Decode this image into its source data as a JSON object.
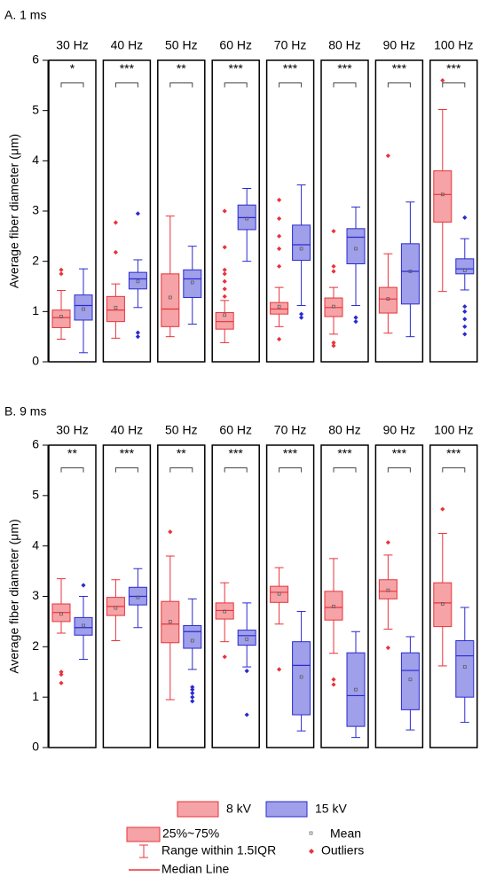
{
  "chart_data": [
    {
      "type": "box",
      "title": "A. 1 ms",
      "ylabel": "Average fiber diameter (μm)",
      "ylim": [
        0,
        6
      ],
      "yticks": [
        0,
        1,
        2,
        3,
        4,
        5,
        6
      ],
      "categories": [
        "30 Hz",
        "40 Hz",
        "50 Hz",
        "60 Hz",
        "70 Hz",
        "80 Hz",
        "90 Hz",
        "100 Hz"
      ],
      "significance": [
        "*",
        "***",
        "**",
        "***",
        "***",
        "***",
        "***",
        "***"
      ],
      "series": [
        {
          "name": "8 kV",
          "color": "#e8333a",
          "stats": [
            {
              "low": 0.45,
              "q1": 0.68,
              "median": 0.88,
              "q3": 1.03,
              "high": 1.42,
              "mean": 0.9,
              "outliers": [
                1.75,
                1.83
              ]
            },
            {
              "low": 0.47,
              "q1": 0.8,
              "median": 1.03,
              "q3": 1.3,
              "high": 1.55,
              "mean": 1.08,
              "outliers": [
                2.18,
                2.77
              ]
            },
            {
              "low": 0.5,
              "q1": 0.7,
              "median": 1.05,
              "q3": 1.75,
              "high": 2.9,
              "mean": 1.28,
              "outliers": []
            },
            {
              "low": 0.38,
              "q1": 0.65,
              "median": 0.8,
              "q3": 0.98,
              "high": 1.22,
              "mean": 0.93,
              "outliers": [
                1.3,
                1.45,
                1.6,
                1.75,
                1.83,
                2.28,
                3.0
              ]
            },
            {
              "low": 0.7,
              "q1": 0.95,
              "median": 1.05,
              "q3": 1.18,
              "high": 1.48,
              "mean": 1.1,
              "outliers": [
                0.45,
                1.9,
                2.25,
                2.5,
                2.85,
                3.22
              ]
            },
            {
              "low": 0.55,
              "q1": 0.9,
              "median": 1.08,
              "q3": 1.27,
              "high": 1.48,
              "mean": 1.1,
              "outliers": [
                0.32,
                0.38,
                1.8,
                1.9,
                2.6
              ]
            },
            {
              "low": 0.57,
              "q1": 0.97,
              "median": 1.25,
              "q3": 1.48,
              "high": 2.15,
              "mean": 1.25,
              "outliers": [
                4.1
              ]
            },
            {
              "low": 1.4,
              "q1": 2.78,
              "median": 3.33,
              "q3": 3.8,
              "high": 5.02,
              "mean": 3.33,
              "outliers": [
                5.6
              ]
            }
          ]
        },
        {
          "name": "15 kV",
          "color": "#2a2ad0",
          "stats": [
            {
              "low": 0.18,
              "q1": 0.83,
              "median": 1.12,
              "q3": 1.33,
              "high": 1.85,
              "mean": 1.05,
              "outliers": []
            },
            {
              "low": 1.08,
              "q1": 1.45,
              "median": 1.65,
              "q3": 1.78,
              "high": 2.03,
              "mean": 1.6,
              "outliers": [
                0.5,
                0.58,
                2.95
              ]
            },
            {
              "low": 0.75,
              "q1": 1.28,
              "median": 1.65,
              "q3": 1.83,
              "high": 2.3,
              "mean": 1.58,
              "outliers": []
            },
            {
              "low": 2.0,
              "q1": 2.63,
              "median": 2.87,
              "q3": 3.12,
              "high": 3.45,
              "mean": 2.85,
              "outliers": []
            },
            {
              "low": 1.12,
              "q1": 2.02,
              "median": 2.33,
              "q3": 2.72,
              "high": 3.52,
              "mean": 2.25,
              "outliers": [
                0.88,
                0.95
              ]
            },
            {
              "low": 1.12,
              "q1": 1.95,
              "median": 2.48,
              "q3": 2.65,
              "high": 3.08,
              "mean": 2.25,
              "outliers": [
                0.8,
                0.88
              ]
            },
            {
              "low": 0.5,
              "q1": 1.15,
              "median": 1.8,
              "q3": 2.35,
              "high": 3.18,
              "mean": 1.8,
              "outliers": []
            },
            {
              "low": 1.43,
              "q1": 1.75,
              "median": 1.85,
              "q3": 2.05,
              "high": 2.45,
              "mean": 1.82,
              "outliers": [
                0.55,
                0.7,
                0.85,
                1.0,
                1.1,
                2.87
              ]
            }
          ]
        }
      ]
    },
    {
      "type": "box",
      "title": "B. 9 ms",
      "ylabel": "Average fiber diameter (μm)",
      "ylim": [
        0,
        6
      ],
      "yticks": [
        0,
        1,
        2,
        3,
        4,
        5,
        6
      ],
      "categories": [
        "30 Hz",
        "40 Hz",
        "50 Hz",
        "60 Hz",
        "70 Hz",
        "80 Hz",
        "90 Hz",
        "100 Hz"
      ],
      "significance": [
        "**",
        "***",
        "**",
        "***",
        "***",
        "***",
        "***",
        "***"
      ],
      "series": [
        {
          "color": "#e8333a",
          "stats": [
            {
              "low": 2.27,
              "q1": 2.5,
              "median": 2.68,
              "q3": 2.85,
              "high": 3.35,
              "mean": 2.65,
              "outliers": [
                1.28,
                1.45,
                1.5
              ]
            },
            {
              "low": 2.12,
              "q1": 2.62,
              "median": 2.8,
              "q3": 2.98,
              "high": 3.33,
              "mean": 2.77,
              "outliers": []
            },
            {
              "low": 0.95,
              "q1": 2.08,
              "median": 2.45,
              "q3": 2.9,
              "high": 3.8,
              "mean": 2.5,
              "outliers": [
                4.28
              ]
            },
            {
              "low": 2.1,
              "q1": 2.55,
              "median": 2.72,
              "q3": 2.87,
              "high": 3.27,
              "mean": 2.7,
              "outliers": [
                1.8
              ]
            },
            {
              "low": 2.45,
              "q1": 2.88,
              "median": 3.08,
              "q3": 3.2,
              "high": 3.57,
              "mean": 3.05,
              "outliers": [
                1.55
              ]
            },
            {
              "low": 1.87,
              "q1": 2.53,
              "median": 2.78,
              "q3": 3.1,
              "high": 3.75,
              "mean": 2.8,
              "outliers": [
                1.25,
                1.35
              ]
            },
            {
              "low": 2.35,
              "q1": 2.95,
              "median": 3.1,
              "q3": 3.33,
              "high": 3.82,
              "mean": 3.12,
              "outliers": [
                1.98,
                4.07
              ]
            },
            {
              "low": 1.62,
              "q1": 2.4,
              "median": 2.87,
              "q3": 3.27,
              "high": 4.25,
              "mean": 2.85,
              "outliers": [
                4.73
              ]
            }
          ]
        },
        {
          "color": "#2a2ad0",
          "stats": [
            {
              "low": 1.75,
              "q1": 2.23,
              "median": 2.38,
              "q3": 2.58,
              "high": 3.0,
              "mean": 2.42,
              "outliers": [
                3.22
              ]
            },
            {
              "low": 2.38,
              "q1": 2.83,
              "median": 3.0,
              "q3": 3.18,
              "high": 3.55,
              "mean": 2.98,
              "outliers": []
            },
            {
              "low": 1.55,
              "q1": 1.97,
              "median": 2.3,
              "q3": 2.42,
              "high": 2.95,
              "mean": 2.12,
              "outliers": [
                0.92,
                1.0,
                1.08,
                1.15,
                1.2
              ]
            },
            {
              "low": 1.6,
              "q1": 2.03,
              "median": 2.22,
              "q3": 2.33,
              "high": 2.87,
              "mean": 2.15,
              "outliers": [
                0.65,
                1.52
              ]
            },
            {
              "low": 0.33,
              "q1": 0.65,
              "median": 1.63,
              "q3": 2.1,
              "high": 2.7,
              "mean": 1.4,
              "outliers": []
            },
            {
              "low": 0.2,
              "q1": 0.42,
              "median": 1.03,
              "q3": 1.88,
              "high": 2.3,
              "mean": 1.15,
              "outliers": []
            },
            {
              "low": 0.35,
              "q1": 0.75,
              "median": 1.53,
              "q3": 1.88,
              "high": 2.2,
              "mean": 1.35,
              "outliers": []
            },
            {
              "low": 0.5,
              "q1": 1.0,
              "median": 1.82,
              "q3": 2.12,
              "high": 2.78,
              "mean": 1.6,
              "outliers": []
            }
          ]
        }
      ]
    }
  ],
  "legend_key": {
    "box": "25%~75%",
    "whisker": "Range within 1.5IQR",
    "median": "Median Line",
    "mean": "Mean",
    "outliers": "Outliers"
  }
}
